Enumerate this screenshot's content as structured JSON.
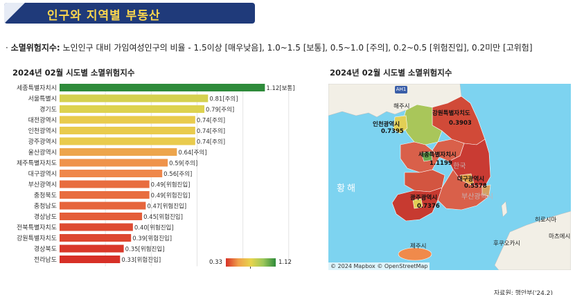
{
  "header": {
    "title": "인구와 지역별 부동산"
  },
  "description": {
    "bullet": "·",
    "label": "소멸위험지수:",
    "text": " 노인인구 대비 가임여성인구의 비율 - 1.5이상 [매우낮음], 1.0~1.5 [보통], 0.5~1.0 [주의], 0.2~0.5 [위험진입], 0.2미만 [고위험]"
  },
  "bar_panel": {
    "title": "2024년 02월 시도별 소멸위험지수"
  },
  "map_panel": {
    "title": "2024년 02월 시도별 소멸위험지수",
    "attribution": "© 2024 Mapbox  © OpenStreetMap",
    "route_badge": "AH1",
    "labels": {
      "haeju": "해주시",
      "incheon": "인천광역시",
      "incheon_value": "0.7395",
      "gangwon": "강원특별자치도",
      "gangwon_value": "0.3903",
      "sejong": "세종특별자치시",
      "sejong_value": "1.1199",
      "korea": "한국",
      "daegu": "대구광역시",
      "daegu_value": "0.5578",
      "busan": "부산광역시",
      "gwangju": "광주광역시",
      "gwangju_value": "0.7376",
      "yellow_sea": "황해",
      "jeju": "제주시",
      "hiroshima": "히로시마",
      "kitakyushu": "후쿠오카시",
      "matsue": "마츠에시"
    }
  },
  "legend": {
    "min": "0.33",
    "max": "1.12"
  },
  "source": "자료원: 행안부('24.2)",
  "colors": {
    "high": "#2e8b3a",
    "mid": "#e8d44d",
    "low": "#d73027",
    "sea": "#7dd3f0"
  },
  "chart_data": {
    "type": "bar",
    "orientation": "horizontal",
    "title": "2024년 02월 시도별 소멸위험지수",
    "categories": [
      "세종특별자치시",
      "서울특별시",
      "경기도",
      "대전광역시",
      "인천광역시",
      "광주광역시",
      "울산광역시",
      "제주특별자치도",
      "대구광역시",
      "부산광역시",
      "충청북도",
      "충청남도",
      "경상남도",
      "전북특별자치도",
      "강원특별자치도",
      "경상북도",
      "전라남도"
    ],
    "values": [
      1.12,
      0.81,
      0.79,
      0.74,
      0.74,
      0.74,
      0.64,
      0.59,
      0.56,
      0.49,
      0.49,
      0.47,
      0.45,
      0.4,
      0.39,
      0.35,
      0.33
    ],
    "value_labels": [
      "1.12[보통]",
      "0.81[주의]",
      "0.79[주의]",
      "0.74[주의]",
      "0.74[주의]",
      "0.74[주의]",
      "0.64[주의]",
      "0.59[주의]",
      "0.56[주의]",
      "0.49[위험진입]",
      "0.49[위험진입]",
      "0.47[위험진입]",
      "0.45[위험진입]",
      "0.40[위험진입]",
      "0.39[위험진입]",
      "0.35[위험진입]",
      "0.33[위험진입]"
    ],
    "xlim": [
      0,
      1.3
    ],
    "color_range": [
      0.33,
      1.12
    ],
    "grid": true
  }
}
